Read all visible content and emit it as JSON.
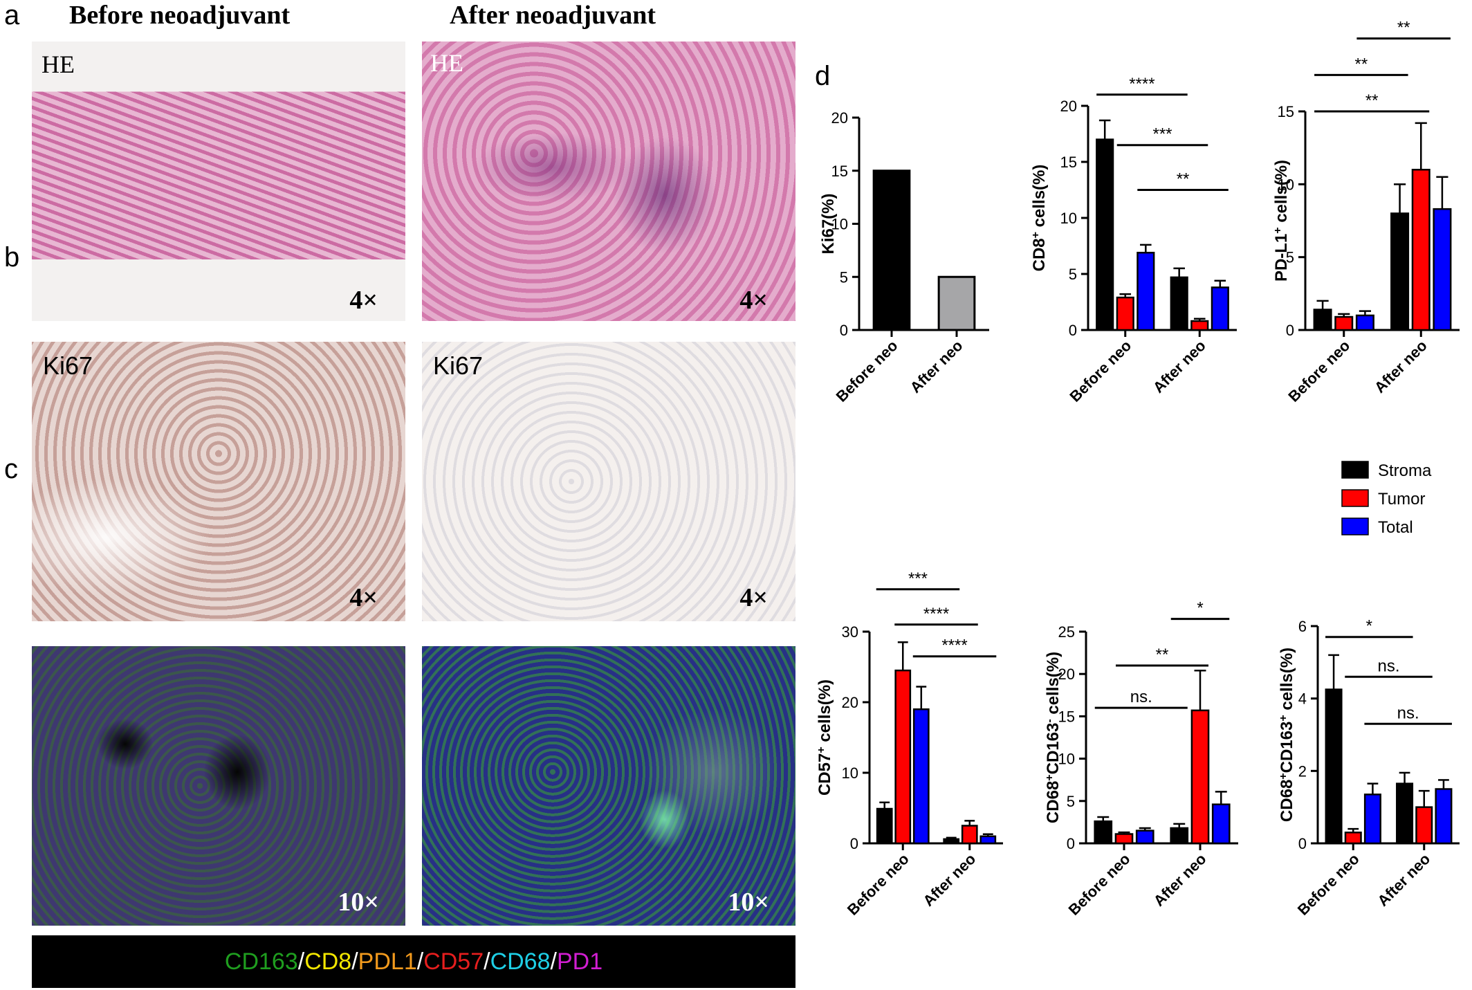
{
  "panels": {
    "a": {
      "letter": "a"
    },
    "b": {
      "letter": "b"
    },
    "c": {
      "letter": "c"
    },
    "d": {
      "letter": "d"
    }
  },
  "columns": {
    "before": "Before neoadjuvant",
    "after": "After neoadjuvant"
  },
  "images": {
    "he_before": {
      "label": "HE",
      "mag": "4×"
    },
    "he_after": {
      "label": "HE",
      "mag": "4×"
    },
    "ki_before": {
      "label": "Ki67",
      "mag": "4×"
    },
    "ki_after": {
      "label": "Ki67",
      "mag": "4×"
    },
    "if_before": {
      "mag": "10×"
    },
    "if_after": {
      "mag": "10×"
    }
  },
  "marker_legend": [
    {
      "text": "CD163",
      "color": "#1f9e1f"
    },
    {
      "text": "/",
      "color": "#ffffff"
    },
    {
      "text": "CD8",
      "color": "#f2e600"
    },
    {
      "text": "/",
      "color": "#ffffff"
    },
    {
      "text": "PDL1",
      "color": "#f29a1d"
    },
    {
      "text": "/",
      "color": "#ffffff"
    },
    {
      "text": "CD57",
      "color": "#e61e1e"
    },
    {
      "text": "/",
      "color": "#ffffff"
    },
    {
      "text": "CD68",
      "color": "#1ecfe6"
    },
    {
      "text": "/",
      "color": "#ffffff"
    },
    {
      "text": "PD1",
      "color": "#d21ed2"
    }
  ],
  "legend": {
    "items": [
      {
        "name": "Stroma",
        "color": "#000000"
      },
      {
        "name": "Tumor",
        "color": "#ff0000"
      },
      {
        "name": "Total",
        "color": "#0000ff"
      }
    ]
  },
  "chart_data": [
    {
      "type": "bar",
      "categories": [
        "Before neo",
        "After neo"
      ],
      "ylabel": "Ki67(%)",
      "ylim": [
        0,
        20
      ],
      "yticks": [
        0,
        5,
        10,
        15,
        20
      ],
      "values": [
        15,
        5
      ],
      "bar_colors": [
        "#000000",
        "#a6a6a8"
      ]
    },
    {
      "type": "bar",
      "categories": [
        "Before neo",
        "After neo"
      ],
      "ylabel_main": "CD8",
      "ylabel_sup": "+",
      "ylabel_rest": " cells(%)",
      "ylim": [
        0,
        20
      ],
      "yticks": [
        0,
        5,
        10,
        15,
        20
      ],
      "series": [
        {
          "name": "Stroma",
          "values": [
            17.0,
            4.7
          ],
          "errors": [
            1.7,
            0.8
          ]
        },
        {
          "name": "Tumor",
          "values": [
            2.9,
            0.8
          ],
          "errors": [
            0.3,
            0.2
          ]
        },
        {
          "name": "Total",
          "values": [
            6.9,
            3.8
          ],
          "errors": [
            0.7,
            0.6
          ]
        }
      ],
      "significance": [
        {
          "label": "****",
          "level": 21.0,
          "from": [
            0,
            0
          ],
          "to": [
            1,
            0
          ]
        },
        {
          "label": "***",
          "level": 16.5,
          "from": [
            0,
            1
          ],
          "to": [
            1,
            1
          ]
        },
        {
          "label": "**",
          "level": 12.5,
          "from": [
            0,
            2
          ],
          "to": [
            1,
            2
          ]
        }
      ]
    },
    {
      "type": "bar",
      "categories": [
        "Before neo",
        "After neo"
      ],
      "ylabel_main": "PD-L1",
      "ylabel_sup": "+",
      "ylabel_rest": " cells(%)",
      "ylim": [
        0,
        15
      ],
      "yticks": [
        0,
        5,
        10,
        15
      ],
      "series": [
        {
          "name": "Stroma",
          "values": [
            1.4,
            8.0
          ],
          "errors": [
            0.6,
            2.0
          ]
        },
        {
          "name": "Tumor",
          "values": [
            0.9,
            11.0
          ],
          "errors": [
            0.2,
            3.2
          ]
        },
        {
          "name": "Total",
          "values": [
            1.0,
            8.3
          ],
          "errors": [
            0.3,
            2.2
          ]
        }
      ],
      "significance": [
        {
          "label": "**",
          "level": 17.5,
          "from": [
            0,
            0
          ],
          "to": [
            1,
            0
          ]
        },
        {
          "label": "**",
          "level": 15.0,
          "from": [
            0,
            0
          ],
          "to": [
            1,
            1
          ]
        },
        {
          "label": "**",
          "level": 20.0,
          "from": [
            0,
            2
          ],
          "to": [
            1,
            2
          ]
        }
      ]
    },
    {
      "type": "bar",
      "categories": [
        "Before neo",
        "After neo"
      ],
      "ylabel_main": "CD57",
      "ylabel_sup": "+",
      "ylabel_rest": " cells(%)",
      "ylim": [
        0,
        30
      ],
      "yticks": [
        0,
        10,
        20,
        30
      ],
      "series": [
        {
          "name": "Stroma",
          "values": [
            4.9,
            0.6
          ],
          "errors": [
            0.9,
            0.2
          ]
        },
        {
          "name": "Tumor",
          "values": [
            24.5,
            2.5
          ],
          "errors": [
            4.0,
            0.7
          ]
        },
        {
          "name": "Total",
          "values": [
            19.0,
            1.0
          ],
          "errors": [
            3.2,
            0.3
          ]
        }
      ],
      "significance": [
        {
          "label": "***",
          "level": 36.0,
          "from": [
            0,
            0
          ],
          "to": [
            1,
            0
          ]
        },
        {
          "label": "****",
          "level": 31.0,
          "from": [
            0,
            1
          ],
          "to": [
            1,
            1
          ]
        },
        {
          "label": "****",
          "level": 26.5,
          "from": [
            0,
            2
          ],
          "to": [
            1,
            2
          ]
        }
      ]
    },
    {
      "type": "bar",
      "categories": [
        "Before neo",
        "After neo"
      ],
      "ylabel_main": "CD68",
      "ylabel_sup": "+",
      "ylabel_mid": "CD163",
      "ylabel_sup2": "-",
      "ylabel_rest": " cells(%)",
      "ylim": [
        0,
        25
      ],
      "yticks": [
        0,
        5,
        10,
        15,
        20,
        25
      ],
      "series": [
        {
          "name": "Stroma",
          "values": [
            2.6,
            1.8
          ],
          "errors": [
            0.5,
            0.5
          ]
        },
        {
          "name": "Tumor",
          "values": [
            1.1,
            15.7
          ],
          "errors": [
            0.2,
            4.7
          ]
        },
        {
          "name": "Total",
          "values": [
            1.5,
            4.6
          ],
          "errors": [
            0.3,
            1.5
          ]
        }
      ],
      "significance": [
        {
          "label": "ns.",
          "level": 16.0,
          "from": [
            0,
            0
          ],
          "to": [
            1,
            0
          ]
        },
        {
          "label": "**",
          "level": 21.0,
          "from": [
            0,
            1
          ],
          "to": [
            1,
            1
          ]
        },
        {
          "label": "*",
          "level": 26.5,
          "from": [
            1,
            0
          ],
          "to": [
            1,
            2
          ]
        }
      ]
    },
    {
      "type": "bar",
      "categories": [
        "Before neo",
        "After neo"
      ],
      "ylabel_main": "CD68",
      "ylabel_sup": "+",
      "ylabel_mid": "CD163",
      "ylabel_sup2": "+",
      "ylabel_rest": " cells(%)",
      "ylim": [
        0,
        6
      ],
      "yticks": [
        0,
        2,
        4,
        6
      ],
      "series": [
        {
          "name": "Stroma",
          "values": [
            4.25,
            1.65
          ],
          "errors": [
            0.95,
            0.3
          ]
        },
        {
          "name": "Tumor",
          "values": [
            0.3,
            1.0
          ],
          "errors": [
            0.1,
            0.45
          ]
        },
        {
          "name": "Total",
          "values": [
            1.35,
            1.5
          ],
          "errors": [
            0.3,
            0.25
          ]
        }
      ],
      "significance": [
        {
          "label": "*",
          "level": 5.7,
          "from": [
            0,
            0
          ],
          "to": [
            1,
            0
          ]
        },
        {
          "label": "ns.",
          "level": 4.6,
          "from": [
            0,
            1
          ],
          "to": [
            1,
            1
          ]
        },
        {
          "label": "ns.",
          "level": 3.3,
          "from": [
            0,
            2
          ],
          "to": [
            1,
            2
          ]
        }
      ]
    }
  ]
}
